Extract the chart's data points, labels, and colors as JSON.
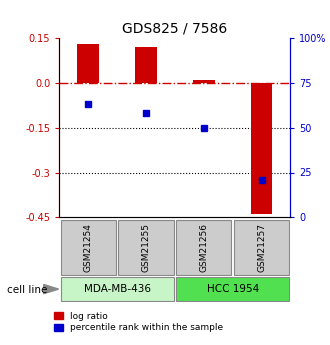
{
  "title": "GDS825 / 7586",
  "samples": [
    "GSM21254",
    "GSM21255",
    "GSM21256",
    "GSM21257"
  ],
  "log_ratio": [
    0.13,
    0.12,
    0.01,
    -0.44
  ],
  "percentile_rank": [
    63,
    58,
    50,
    21
  ],
  "ylim_left": [
    -0.45,
    0.15
  ],
  "ylim_right": [
    0,
    100
  ],
  "yticks_left": [
    0.15,
    0.0,
    -0.15,
    -0.3,
    -0.45
  ],
  "yticks_right": [
    100,
    75,
    50,
    25,
    0
  ],
  "cell_lines": [
    {
      "label": "MDA-MB-436",
      "samples": [
        0,
        1
      ],
      "color": "#c8f5c8"
    },
    {
      "label": "HCC 1954",
      "samples": [
        2,
        3
      ],
      "color": "#50e050"
    }
  ],
  "bar_color": "#cc0000",
  "dot_color": "#0000cc",
  "left_tick_color": "#cc0000",
  "right_tick_color": "#0000cc",
  "hline_color": "#cc0000",
  "dotted_line_color": "#000000",
  "gsm_box_color": "#cccccc",
  "cell_line_label": "cell line",
  "legend_bar_label": "log ratio",
  "legend_dot_label": "percentile rank within the sample",
  "bg_color": "#ffffff"
}
